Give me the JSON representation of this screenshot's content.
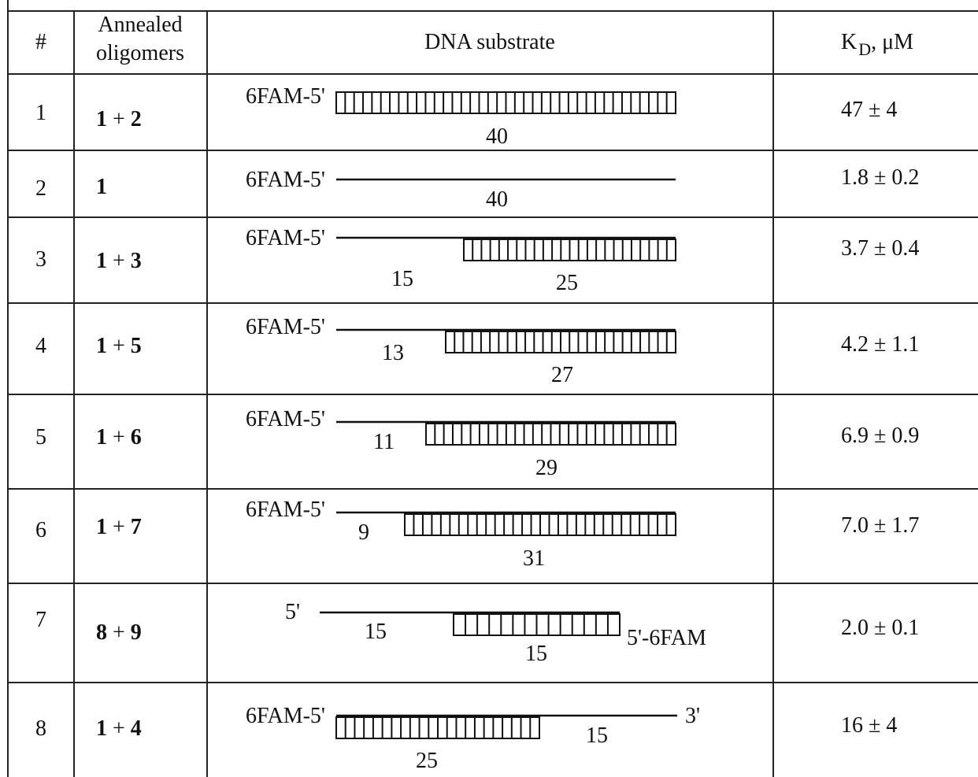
{
  "header": {
    "num": "#",
    "annealed_line1": "Annealed",
    "annealed_line2": "oligomers",
    "substrate": "DNA substrate",
    "kd_main": "K",
    "kd_sub": "D",
    "kd_unit": ", μM"
  },
  "rows": [
    {
      "num": "1",
      "olig_a": "1",
      "plus": " + ",
      "olig_b": "2",
      "kd": "47 ± 4",
      "label_5p": "6FAM-5'",
      "labels": [
        "40"
      ]
    },
    {
      "num": "2",
      "olig_a": "1",
      "plus": "",
      "olig_b": "",
      "kd": "1.8 ± 0.2",
      "label_5p": "6FAM-5'",
      "labels": [
        "40"
      ]
    },
    {
      "num": "3",
      "olig_a": "1",
      "plus": " + ",
      "olig_b": "3",
      "kd": "3.7 ± 0.4",
      "label_5p": "6FAM-5'",
      "labels": [
        "15",
        "25"
      ]
    },
    {
      "num": "4",
      "olig_a": "1",
      "plus": " + ",
      "olig_b": "5",
      "kd": "4.2 ± 1.1",
      "label_5p": "6FAM-5'",
      "labels": [
        "13",
        "27"
      ]
    },
    {
      "num": "5",
      "olig_a": "1",
      "plus": " + ",
      "olig_b": "6",
      "kd": "6.9 ± 0.9",
      "label_5p": "6FAM-5'",
      "labels": [
        "11",
        "29"
      ]
    },
    {
      "num": "6",
      "olig_a": "1",
      "plus": " + ",
      "olig_b": "7",
      "kd": "7.0 ± 1.7",
      "label_5p": "6FAM-5'",
      "labels": [
        "9",
        "31"
      ]
    },
    {
      "num": "7",
      "olig_a": "8",
      "plus": " + ",
      "olig_b": "9",
      "kd": "2.0 ± 0.1",
      "label_5p": "5'",
      "label_3p": "5'-6FAM",
      "labels": [
        "15",
        "15"
      ]
    },
    {
      "num": "8",
      "olig_a": "1",
      "plus": " + ",
      "olig_b": "4",
      "kd": "16 ± 4",
      "label_5p": "6FAM-5'",
      "label_3p": "3'",
      "labels": [
        "25",
        "15"
      ]
    }
  ]
}
